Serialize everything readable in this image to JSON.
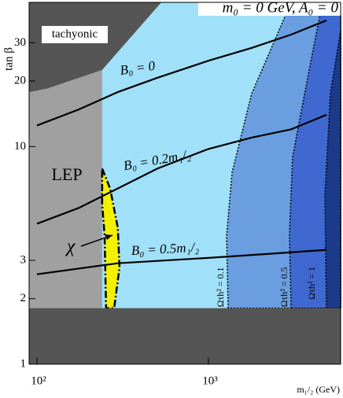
{
  "chart_data": {
    "type": "region",
    "title": "m₀ = 0 GeV, A₀ = 0",
    "xlabel": "m₁/₂ (GeV)",
    "ylabel": "tan β",
    "xscale": "log",
    "yscale": "log",
    "xlim": [
      90,
      5900
    ],
    "ylim": [
      1,
      46
    ],
    "xticks": [
      {
        "value": 100,
        "label": "10²"
      },
      {
        "value": 1000,
        "label": "10³"
      }
    ],
    "yticks": [
      1,
      2,
      3,
      10,
      20,
      30
    ],
    "background": "#a0e0f8",
    "regions": [
      {
        "label": "Ωτh² = 0.1",
        "color": "#6a9ee0",
        "x": [
          1303,
          1276,
          1374,
          1786,
          3034,
          5900,
          5900
        ],
        "y": [
          1.81,
          3.9,
          7.6,
          17.5,
          46,
          46,
          1.81
        ]
      },
      {
        "label": "Ωτh² = 0.5",
        "color": "#3f69d0",
        "x": [
          3034,
          2965,
          3096,
          3945,
          4625,
          5900,
          5900
        ],
        "y": [
          1.81,
          3.9,
          8.97,
          24.4,
          46,
          46,
          1.81
        ]
      },
      {
        "label": "Ωτh² = 1",
        "color": "#1c3a8a",
        "x": [
          4875,
          4775,
          5140,
          5900,
          5900
        ],
        "y": [
          1.81,
          5.91,
          17.5,
          34.1,
          1.81
        ]
      },
      {
        "label": "LEP",
        "color": "#a0a0a0",
        "x": [
          90,
          240,
          240,
          90
        ],
        "y": [
          1.81,
          1.81,
          46,
          46
        ]
      },
      {
        "label": "tachyonic",
        "color": "#555555",
        "x": [
          90,
          90,
          115,
          240,
          531
        ],
        "y": [
          46,
          17.8,
          18.5,
          22.5,
          46
        ]
      },
      {
        "label": "χ",
        "color": "#f2f200",
        "x": [
          240,
          267,
          296,
          303,
          282,
          253,
          248,
          240
        ],
        "y": [
          7.92,
          6.42,
          4.24,
          2.79,
          1.81,
          1.81,
          3.9,
          5.44
        ]
      },
      {
        "color": "#555555",
        "x": [
          90,
          5900,
          5900,
          90
        ],
        "y": [
          1,
          1,
          1.81,
          1.81
        ]
      }
    ],
    "series": [
      {
        "name": "B₀ = 0",
        "color": "#000000",
        "x": [
          100,
          175,
          296,
          503,
          1000,
          1786,
          3034,
          4875
        ],
        "values": [
          12.5,
          14.8,
          17.8,
          20.7,
          24.8,
          28.4,
          32.7,
          38.0
        ]
      },
      {
        "name": "B₀ = 0.2m₁/₂",
        "color": "#000000",
        "x": [
          100,
          175,
          296,
          503,
          1000,
          1786,
          3034,
          4875
        ],
        "values": [
          4.42,
          5.22,
          6.42,
          7.92,
          9.75,
          11.0,
          12.0,
          14.0
        ]
      },
      {
        "name": "B₀ = 0.5m₁/₂",
        "color": "#000000",
        "x": [
          100,
          296,
          1000,
          4875
        ],
        "values": [
          2.59,
          2.91,
          3.08,
          3.35
        ]
      }
    ]
  }
}
